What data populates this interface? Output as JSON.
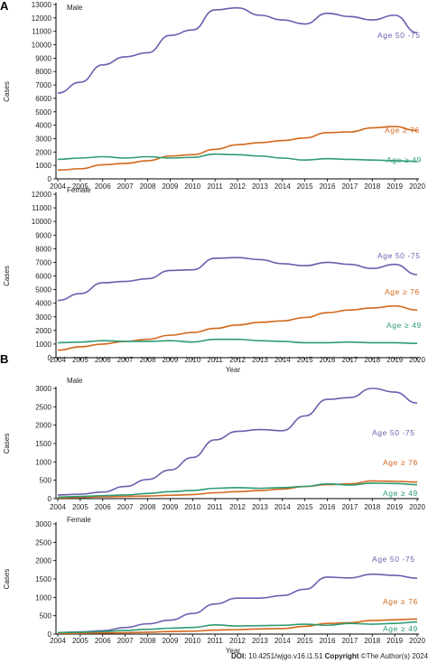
{
  "colors": {
    "age50_75": "#6a5fae",
    "age76": "#d2691e",
    "age49": "#2e9b73",
    "axis": "#000000"
  },
  "footer": {
    "doi_label": "DOI:",
    "doi": "10.4251/wjgo.v16.i1.51",
    "copyright_label": "Copyright",
    "copyright_text": "©The Author(s) 2024."
  },
  "chart_data": [
    {
      "type": "line",
      "panel": "A",
      "title": "Male",
      "xlabel": "",
      "ylabel": "Cases",
      "x": [
        2004,
        2005,
        2006,
        2007,
        2008,
        2009,
        2010,
        2011,
        2012,
        2013,
        2014,
        2015,
        2016,
        2017,
        2018,
        2019,
        2020
      ],
      "ylim": [
        0,
        13000
      ],
      "yticks": [
        0,
        1000,
        2000,
        3000,
        4000,
        5000,
        6000,
        7000,
        8000,
        9000,
        10000,
        11000,
        12000,
        13000
      ],
      "grid": false,
      "series": [
        {
          "name": "Age 50 -75",
          "color_key": "age50_75",
          "values": [
            6400,
            7200,
            8500,
            9100,
            9400,
            10700,
            11100,
            12600,
            12750,
            12200,
            11850,
            11550,
            12350,
            12100,
            11850,
            12200,
            10900
          ]
        },
        {
          "name": "Age ≥ 76",
          "color_key": "age76",
          "values": [
            650,
            750,
            1050,
            1150,
            1350,
            1700,
            1800,
            2200,
            2550,
            2700,
            2850,
            3050,
            3450,
            3500,
            3800,
            3900,
            3600
          ]
        },
        {
          "name": "Age ≥ 49",
          "color_key": "age49",
          "values": [
            1450,
            1550,
            1650,
            1550,
            1650,
            1550,
            1600,
            1850,
            1800,
            1700,
            1550,
            1400,
            1500,
            1450,
            1400,
            1350,
            1300
          ]
        }
      ]
    },
    {
      "type": "line",
      "panel": "",
      "title": "Female",
      "xlabel": "Year",
      "ylabel": "Cases",
      "x": [
        2004,
        2005,
        2006,
        2007,
        2008,
        2009,
        2010,
        2011,
        2012,
        2013,
        2014,
        2015,
        2016,
        2017,
        2018,
        2019,
        2020
      ],
      "ylim": [
        0,
        12000
      ],
      "yticks": [
        0,
        1000,
        2000,
        3000,
        4000,
        5000,
        6000,
        7000,
        8000,
        9000,
        10000,
        11000,
        12000
      ],
      "grid": false,
      "series": [
        {
          "name": "Age 50 -75",
          "color_key": "age50_75",
          "values": [
            4200,
            4700,
            5500,
            5600,
            5800,
            6400,
            6450,
            7300,
            7350,
            7200,
            6900,
            6750,
            7000,
            6850,
            6550,
            6850,
            6100
          ]
        },
        {
          "name": "Age ≥ 76",
          "color_key": "age76",
          "values": [
            550,
            800,
            1000,
            1200,
            1350,
            1650,
            1850,
            2150,
            2400,
            2600,
            2700,
            2950,
            3300,
            3500,
            3650,
            3800,
            3500
          ]
        },
        {
          "name": "Age ≥ 49",
          "color_key": "age49",
          "values": [
            1100,
            1150,
            1250,
            1200,
            1200,
            1250,
            1150,
            1350,
            1350,
            1250,
            1200,
            1100,
            1100,
            1150,
            1100,
            1100,
            1050
          ]
        }
      ]
    },
    {
      "type": "line",
      "panel": "B",
      "title": "Male",
      "xlabel": "",
      "ylabel": "Cases",
      "x": [
        2004,
        2005,
        2006,
        2007,
        2008,
        2009,
        2010,
        2011,
        2012,
        2013,
        2014,
        2015,
        2016,
        2017,
        2018,
        2019,
        2020
      ],
      "ylim": [
        0,
        3000
      ],
      "yticks": [
        0,
        500,
        1000,
        1500,
        2000,
        2500,
        3000
      ],
      "grid": false,
      "series": [
        {
          "name": "Age 50 -75",
          "color_key": "age50_75",
          "values": [
            100,
            120,
            180,
            330,
            520,
            780,
            1120,
            1600,
            1830,
            1880,
            1850,
            2250,
            2700,
            2750,
            3000,
            2900,
            2600
          ]
        },
        {
          "name": "Age ≥ 76",
          "color_key": "age76",
          "values": [
            20,
            30,
            50,
            60,
            70,
            90,
            110,
            160,
            190,
            220,
            260,
            330,
            380,
            400,
            480,
            470,
            450
          ]
        },
        {
          "name": "Age ≥ 49",
          "color_key": "age49",
          "values": [
            40,
            60,
            80,
            100,
            140,
            190,
            220,
            280,
            300,
            280,
            300,
            330,
            400,
            370,
            420,
            410,
            380
          ]
        }
      ]
    },
    {
      "type": "line",
      "panel": "",
      "title": "Female",
      "xlabel": "Year",
      "ylabel": "Cases",
      "x": [
        2004,
        2005,
        2006,
        2007,
        2008,
        2009,
        2010,
        2011,
        2012,
        2013,
        2014,
        2015,
        2016,
        2017,
        2018,
        2019,
        2020
      ],
      "ylim": [
        0,
        3000
      ],
      "yticks": [
        0,
        500,
        1000,
        1500,
        2000,
        2500,
        3000
      ],
      "grid": false,
      "series": [
        {
          "name": "Age 50 -75",
          "color_key": "age50_75",
          "values": [
            40,
            60,
            90,
            180,
            280,
            380,
            560,
            820,
            980,
            980,
            1050,
            1220,
            1550,
            1530,
            1630,
            1600,
            1520
          ]
        },
        {
          "name": "Age ≥ 76",
          "color_key": "age76",
          "values": [
            20,
            20,
            30,
            40,
            50,
            70,
            80,
            110,
            120,
            140,
            150,
            210,
            290,
            310,
            370,
            390,
            410
          ]
        },
        {
          "name": "Age ≥ 49",
          "color_key": "age49",
          "values": [
            40,
            50,
            70,
            100,
            130,
            160,
            180,
            250,
            220,
            230,
            240,
            270,
            240,
            290,
            270,
            290,
            330
          ]
        }
      ]
    }
  ]
}
